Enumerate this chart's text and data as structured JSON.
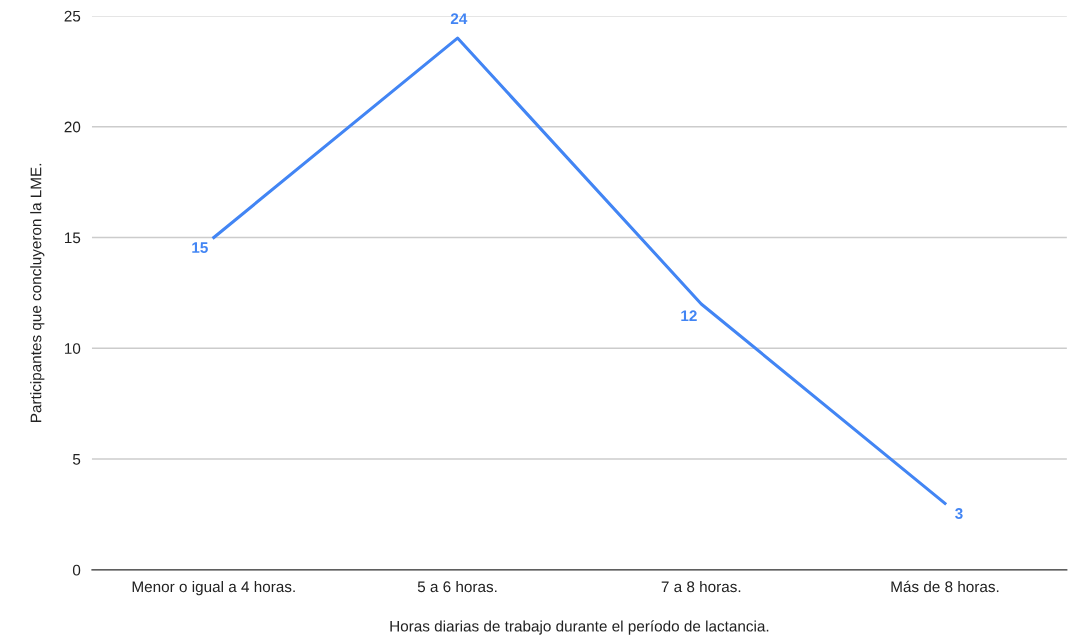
{
  "chart_data": {
    "type": "line",
    "xlabel": "Horas diarias de trabajo durante el período de lactancia.",
    "ylabel": "Participantes que concluyeron la LME.",
    "categories": [
      "Menor o igual a 4 horas.",
      "5 a 6 horas.",
      "7 a 8 horas.",
      "Más de 8 horas."
    ],
    "series": [
      {
        "color": "#4285f4",
        "values": [
          15,
          24,
          12,
          3
        ]
      }
    ],
    "ylim": [
      0,
      25
    ],
    "yticks": [
      0,
      5,
      10,
      15,
      20,
      25
    ],
    "grid": "y",
    "data_labels": true,
    "line_style": "solid",
    "legend": false
  }
}
